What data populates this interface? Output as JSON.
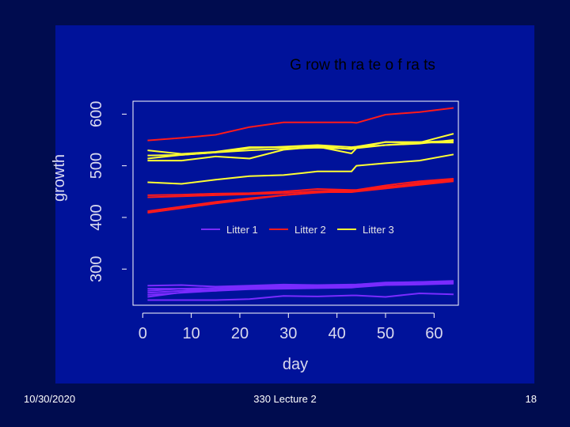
{
  "footer": {
    "date": "10/30/2020",
    "center": "330 Lecture 2",
    "page": "18"
  },
  "colors": {
    "background": "#000c4f",
    "panel": "#00129a",
    "litter1": "#7a2bff",
    "litter2": "#ff1a1a",
    "litter3": "#ffff33",
    "frame": "#ffffff"
  },
  "chart_data": {
    "type": "line",
    "title": "G row th ra te o f ra ts",
    "xlabel": "day",
    "ylabel": "growth",
    "xlim": [
      -2,
      65
    ],
    "ylim": [
      230,
      625
    ],
    "xticks": [
      0,
      10,
      20,
      30,
      40,
      50,
      60
    ],
    "yticks": [
      300,
      400,
      500,
      600
    ],
    "grid": false,
    "legend": {
      "position": "center",
      "entries": [
        {
          "label": "Litter 1",
          "group": "litter1"
        },
        {
          "label": "Litter 2",
          "group": "litter2"
        },
        {
          "label": "Litter 3",
          "group": "litter3"
        }
      ]
    },
    "series": [
      {
        "group": "litter1",
        "x": [
          1,
          8,
          15,
          22,
          29,
          36,
          43,
          44,
          50,
          57,
          64
        ],
        "y": [
          240,
          240,
          240,
          242,
          248,
          247,
          249,
          249,
          246,
          253,
          251
        ]
      },
      {
        "group": "litter1",
        "x": [
          1,
          8,
          15,
          22,
          29,
          36,
          43,
          44,
          50,
          57,
          64
        ],
        "y": [
          254,
          258,
          260,
          264,
          265,
          266,
          268,
          268,
          270,
          271,
          272
        ]
      },
      {
        "group": "litter1",
        "x": [
          1,
          8,
          15,
          22,
          29,
          36,
          43,
          44,
          50,
          57,
          64
        ],
        "y": [
          262,
          262,
          258,
          264,
          265,
          267,
          266,
          266,
          271,
          272,
          274
        ]
      },
      {
        "group": "litter1",
        "x": [
          1,
          8,
          15,
          22,
          29,
          36,
          43,
          44,
          50,
          57,
          64
        ],
        "y": [
          258,
          262,
          263,
          266,
          267,
          267,
          268,
          270,
          273,
          275,
          276
        ]
      },
      {
        "group": "litter1",
        "x": [
          1,
          8,
          15,
          22,
          29,
          36,
          43,
          44,
          50,
          57,
          64
        ],
        "y": [
          246,
          255,
          260,
          263,
          264,
          266,
          266,
          267,
          271,
          271,
          274
        ]
      },
      {
        "group": "litter1",
        "x": [
          1,
          8,
          15,
          22,
          29,
          36,
          43,
          44,
          50,
          57,
          64
        ],
        "y": [
          250,
          254,
          258,
          261,
          262,
          263,
          264,
          265,
          269,
          270,
          272
        ]
      },
      {
        "group": "litter1",
        "x": [
          1,
          8,
          15,
          22,
          29,
          36,
          43,
          44,
          50,
          57,
          64
        ],
        "y": [
          268,
          269,
          266,
          268,
          270,
          269,
          270,
          270,
          274,
          275,
          277
        ]
      },
      {
        "group": "litter2",
        "x": [
          1,
          8,
          15,
          22,
          29,
          36,
          43,
          44,
          50,
          57,
          64
        ],
        "y": [
          549,
          554,
          560,
          575,
          584,
          584,
          584,
          583,
          599,
          604,
          612
        ]
      },
      {
        "group": "litter2",
        "x": [
          1,
          8,
          15,
          22,
          29,
          36,
          43,
          44,
          50,
          57,
          64
        ],
        "y": [
          443,
          444,
          446,
          447,
          450,
          455,
          453,
          453,
          462,
          470,
          475
        ]
      },
      {
        "group": "litter2",
        "x": [
          1,
          8,
          15,
          22,
          29,
          36,
          43,
          44,
          50,
          57,
          64
        ],
        "y": [
          409,
          418,
          427,
          435,
          443,
          449,
          449,
          450,
          456,
          463,
          470
        ]
      },
      {
        "group": "litter2",
        "x": [
          1,
          8,
          15,
          22,
          29,
          36,
          43,
          44,
          50,
          57,
          64
        ],
        "y": [
          412,
          421,
          430,
          437,
          443,
          448,
          451,
          451,
          458,
          467,
          474
        ]
      },
      {
        "group": "litter2",
        "x": [
          1,
          8,
          15,
          22,
          29,
          36,
          43,
          44,
          50,
          57,
          64
        ],
        "y": [
          439,
          441,
          443,
          445,
          447,
          451,
          452,
          452,
          459,
          465,
          472
        ]
      },
      {
        "group": "litter3",
        "x": [
          1,
          8,
          15,
          22,
          29,
          36,
          43,
          44,
          50,
          57,
          64
        ],
        "y": [
          530,
          523,
          527,
          536,
          536,
          538,
          532,
          535,
          546,
          545,
          562
        ]
      },
      {
        "group": "litter3",
        "x": [
          1,
          8,
          15,
          22,
          29,
          36,
          43,
          44,
          50,
          57,
          64
        ],
        "y": [
          520,
          521,
          526,
          534,
          537,
          540,
          536,
          537,
          546,
          546,
          548
        ]
      },
      {
        "group": "litter3",
        "x": [
          1,
          8,
          15,
          22,
          29,
          36,
          43,
          44,
          50,
          57,
          64
        ],
        "y": [
          510,
          510,
          518,
          514,
          531,
          537,
          524,
          534,
          540,
          545,
          545
        ]
      },
      {
        "group": "litter3",
        "x": [
          1,
          8,
          15,
          22,
          29,
          36,
          43,
          44,
          50,
          57,
          64
        ],
        "y": [
          468,
          465,
          473,
          480,
          482,
          489,
          489,
          500,
          505,
          510,
          522
        ]
      },
      {
        "group": "litter3",
        "x": [
          1,
          8,
          15,
          22,
          29,
          36,
          43,
          44,
          50,
          57,
          64
        ],
        "y": [
          514,
          521,
          526,
          530,
          533,
          535,
          533,
          536,
          540,
          543,
          550
        ]
      }
    ]
  }
}
